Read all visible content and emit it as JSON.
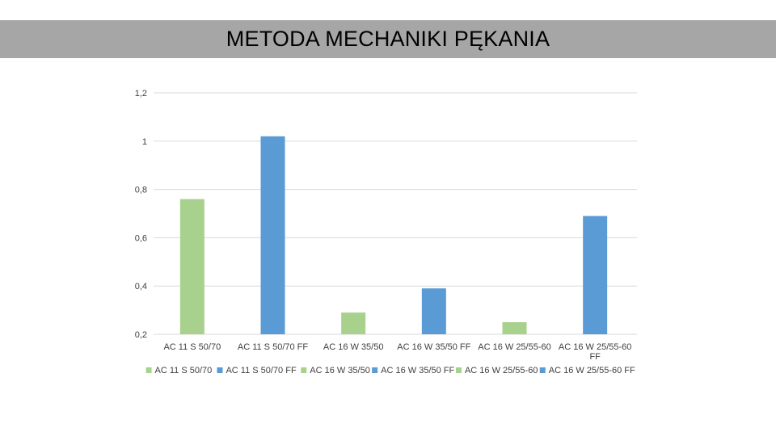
{
  "title": "METODA MECHANIKI PĘKANIA",
  "colors": {
    "title_band": "#a6a6a6",
    "green": "#a9d18e",
    "blue": "#5b9bd5",
    "grid": "#d9d9d9",
    "text": "#404040"
  },
  "chart_data": {
    "type": "bar",
    "title": "",
    "xlabel": "",
    "ylabel": "",
    "ylim": [
      0.2,
      1.2
    ],
    "yticks": [
      "0,2",
      "0,4",
      "0,6",
      "0,8",
      "1",
      "1,2"
    ],
    "ytick_values": [
      0.2,
      0.4,
      0.6,
      0.8,
      1.0,
      1.2
    ],
    "grid": true,
    "legend_position": "bottom",
    "categories": [
      [
        "AC 11 S 50/70"
      ],
      [
        "AC 11 S 50/70 FF"
      ],
      [
        "AC 16 W 35/50"
      ],
      [
        "AC 16 W 35/50 FF"
      ],
      [
        "AC 16 W 25/55-60"
      ],
      [
        "AC 16 W 25/55-60",
        "FF"
      ]
    ],
    "values": [
      0.76,
      1.02,
      0.29,
      0.39,
      0.25,
      0.69
    ],
    "bar_colors": [
      "green",
      "blue",
      "green",
      "blue",
      "green",
      "blue"
    ],
    "legend": [
      {
        "label": "AC 11 S 50/70",
        "color": "green"
      },
      {
        "label": "AC 11 S 50/70 FF",
        "color": "blue"
      },
      {
        "label": "AC 16 W 35/50",
        "color": "green"
      },
      {
        "label": "AC 16 W 35/50 FF",
        "color": "blue"
      },
      {
        "label": "AC 16 W 25/55-60",
        "color": "green"
      },
      {
        "label": "AC 16 W 25/55-60 FF",
        "color": "blue"
      }
    ]
  }
}
